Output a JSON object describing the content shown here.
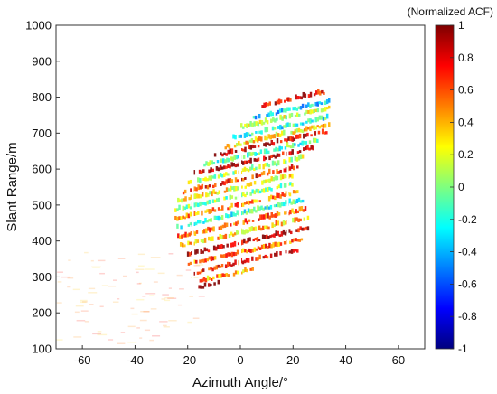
{
  "chart_data": {
    "type": "heatmap",
    "title": "",
    "xlabel": "Azimuth Angle/°",
    "ylabel": "Slant Range/m",
    "xlim": [
      -70,
      70
    ],
    "ylim": [
      100,
      1000
    ],
    "xticks": [
      "-60",
      "-40",
      "-20",
      "0",
      "20",
      "40",
      "60"
    ],
    "yticks": [
      "100",
      "200",
      "300",
      "400",
      "500",
      "600",
      "700",
      "800",
      "900",
      "1000"
    ],
    "colorbar": {
      "title": "(Normalized ACF)",
      "range": [
        -1,
        1
      ],
      "ticks": [
        "-1",
        "-0.8",
        "-0.6",
        "-0.4",
        "-0.2",
        "0",
        "0.2",
        "0.4",
        "0.6",
        "0.8",
        "1"
      ],
      "colormap": [
        "#00007f",
        "#0000ff",
        "#007fff",
        "#00ffff",
        "#7fff7f",
        "#ffff00",
        "#ff7f00",
        "#ff0000",
        "#7f0000"
      ]
    },
    "grid": false,
    "region": {
      "description_value": "sector",
      "az_range": [
        -25,
        35
      ],
      "range_range": [
        270,
        830
      ],
      "seam_azimuths": [
        -18,
        0,
        18
      ],
      "stripe_rows": [
        {
          "range": 780,
          "az_start": 8,
          "az_end": 32,
          "acf": 0.8
        },
        {
          "range": 745,
          "az_start": 4,
          "az_end": 34,
          "acf": -0.3
        },
        {
          "range": 720,
          "az_start": 0,
          "az_end": 34,
          "acf": 0.2
        },
        {
          "range": 690,
          "az_start": -3,
          "az_end": 34,
          "acf": -0.2
        },
        {
          "range": 665,
          "az_start": -6,
          "az_end": 34,
          "acf": 0.3
        },
        {
          "range": 640,
          "az_start": -10,
          "az_end": 33,
          "acf": 0.85
        },
        {
          "range": 615,
          "az_start": -14,
          "az_end": 31,
          "acf": -0.1
        },
        {
          "range": 590,
          "az_start": -18,
          "az_end": 28,
          "acf": 0.9
        },
        {
          "range": 565,
          "az_start": -20,
          "az_end": 24,
          "acf": 0.1
        },
        {
          "range": 540,
          "az_start": -22,
          "az_end": 22,
          "acf": 0.7
        },
        {
          "range": 515,
          "az_start": -24,
          "az_end": 20,
          "acf": 0.25
        },
        {
          "range": 490,
          "az_start": -25,
          "az_end": 20,
          "acf": 0.0
        },
        {
          "range": 465,
          "az_start": -25,
          "az_end": 22,
          "acf": 0.5
        },
        {
          "range": 440,
          "az_start": -25,
          "az_end": 24,
          "acf": -0.15
        },
        {
          "range": 415,
          "az_start": -24,
          "az_end": 25,
          "acf": 0.6
        },
        {
          "range": 390,
          "az_start": -23,
          "az_end": 26,
          "acf": 0.35
        },
        {
          "range": 365,
          "az_start": -21,
          "az_end": 26,
          "acf": 0.9
        },
        {
          "range": 340,
          "az_start": -20,
          "az_end": 25,
          "acf": 0.55
        },
        {
          "range": 315,
          "az_start": -18,
          "az_end": 22,
          "acf": 0.75
        },
        {
          "range": 290,
          "az_start": -17,
          "az_end": 5,
          "acf": 0.45
        },
        {
          "range": 275,
          "az_start": -16,
          "az_end": -8,
          "acf": 0.9
        }
      ]
    }
  }
}
